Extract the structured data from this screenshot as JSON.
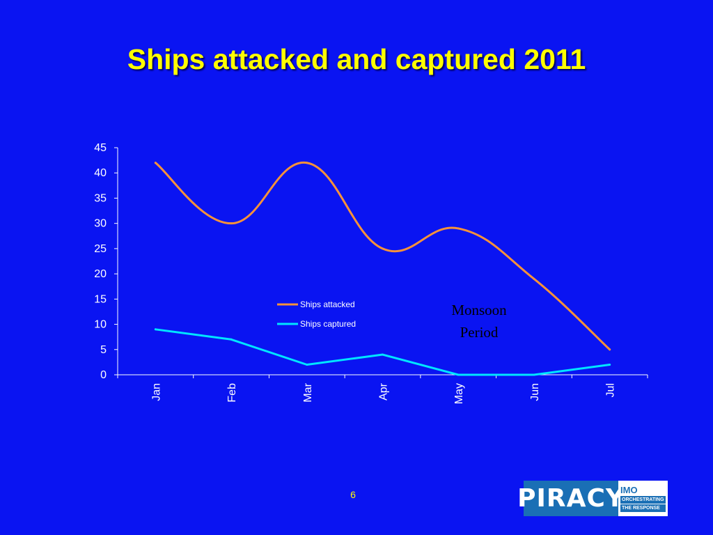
{
  "slide": {
    "page_number": "6",
    "logo": {
      "main": "PIRACY",
      "org": "IMO",
      "tag_line1": "ORCHESTRATING",
      "tag_line2": "THE RESPONSE"
    }
  },
  "chart_data": {
    "type": "line",
    "title": "Ships attacked and captured 2011",
    "categories": [
      "Jan",
      "Feb",
      "Mar",
      "Apr",
      "May",
      "Jun",
      "Jul"
    ],
    "series": [
      {
        "name": "Ships attacked",
        "values": [
          42,
          30,
          42,
          25,
          29,
          19,
          5
        ],
        "color": "#f7923a",
        "smooth": true
      },
      {
        "name": "Ships captured",
        "values": [
          9,
          7,
          2,
          4,
          0,
          0,
          2
        ],
        "color": "#00e5ff",
        "smooth": false
      }
    ],
    "ylim": [
      0,
      45
    ],
    "yticks": [
      0,
      5,
      10,
      15,
      20,
      25,
      30,
      35,
      40,
      45
    ],
    "xlabel": "",
    "ylabel": "",
    "grid": false,
    "legend": "center",
    "annotation": {
      "line1": "Monsoon",
      "line2": "Period",
      "near": "Jun"
    },
    "axis_color": "#ffffff",
    "text_color": "#ffffff",
    "background": "#0a14f2"
  }
}
